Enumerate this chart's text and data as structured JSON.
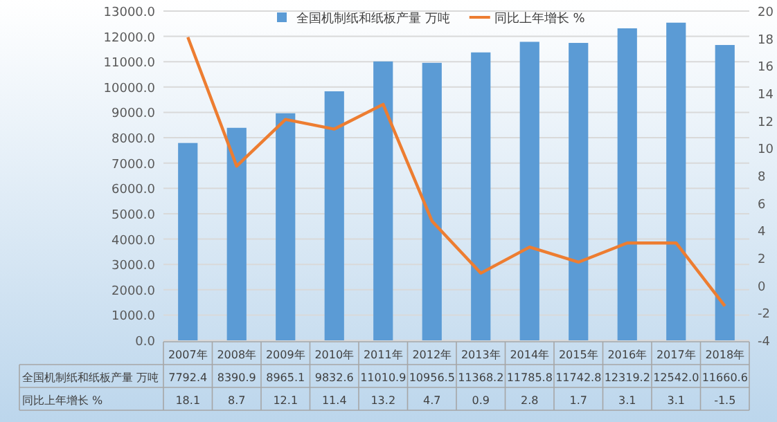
{
  "chart_data": {
    "type": "bar",
    "categories": [
      "2007年",
      "2008年",
      "2009年",
      "2010年",
      "2011年",
      "2012年",
      "2013年",
      "2014年",
      "2015年",
      "2016年",
      "2017年",
      "2018年"
    ],
    "series": [
      {
        "name": "全国机制纸和纸板产量 万吨",
        "color": "#5b9bd5",
        "values": [
          7792.4,
          8390.9,
          8965.1,
          9832.6,
          11010.9,
          10956.5,
          11368.2,
          11785.8,
          11742.8,
          12319.2,
          12542,
          11660.6
        ],
        "value_labels": [
          "7792.4",
          "8390.9",
          "8965.1",
          "9832.6",
          "11010.9",
          "10956.5",
          "11368.2",
          "11785.8",
          "11742.8",
          "12319.2",
          "12542.0",
          "11660.6"
        ]
      },
      {
        "name": "同比上年增长 %",
        "type": "line",
        "axis": "y2",
        "color": "#ed7d31",
        "values": [
          18.1,
          8.7,
          12.1,
          11.4,
          13.2,
          4.7,
          0.9,
          2.8,
          1.7,
          3.1,
          3.1,
          -1.5
        ]
      }
    ],
    "ylim": [
      0,
      13000
    ],
    "yticks": [
      {
        "value": 0,
        "label": "0.0"
      },
      {
        "value": 1000,
        "label": "1000.0"
      },
      {
        "value": 2000,
        "label": "2000.0"
      },
      {
        "value": 3000,
        "label": "3000.0"
      },
      {
        "value": 4000,
        "label": "4000.0"
      },
      {
        "value": 5000,
        "label": "5000.0"
      },
      {
        "value": 6000,
        "label": "6000.0"
      },
      {
        "value": 7000,
        "label": "7000.0"
      },
      {
        "value": 8000,
        "label": "8000.0"
      },
      {
        "value": 9000,
        "label": "9000.0"
      },
      {
        "value": 10000,
        "label": "10000.0"
      },
      {
        "value": 11000,
        "label": "11000.0"
      },
      {
        "value": 12000,
        "label": "12000.0"
      },
      {
        "value": 13000,
        "label": "13000.0"
      }
    ],
    "y2lim": [
      -4,
      20
    ],
    "y2ticks": [
      -4,
      -2,
      0,
      2,
      4,
      6,
      8,
      10,
      12,
      14,
      16,
      18,
      20
    ],
    "grid": "y",
    "legend": "top",
    "data_labels": true
  }
}
